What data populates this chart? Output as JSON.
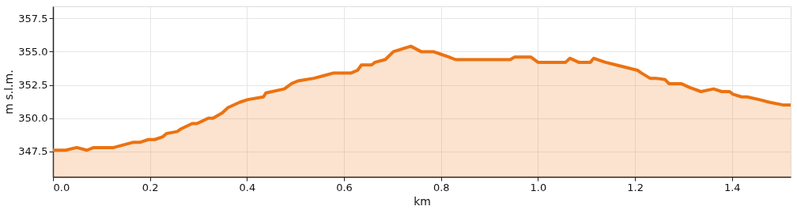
{
  "chart_data": {
    "type": "area",
    "xlabel": "km",
    "ylabel": "m s.l.m.",
    "xlim": [
      0,
      1.521
    ],
    "ylim": [
      345.6,
      358.4
    ],
    "xticks": [
      {
        "value": 0,
        "label": "0.0"
      },
      {
        "value": 0.2,
        "label": "0.2"
      },
      {
        "value": 0.4,
        "label": "0.4"
      },
      {
        "value": 0.6,
        "label": "0.6"
      },
      {
        "value": 0.8,
        "label": "0.8"
      },
      {
        "value": 1.0,
        "label": "1.0"
      },
      {
        "value": 1.2,
        "label": "1.2"
      },
      {
        "value": 1.4,
        "label": "1.4"
      }
    ],
    "yticks": [
      {
        "value": 347.5,
        "label": "347.5"
      },
      {
        "value": 350,
        "label": "350.0"
      },
      {
        "value": 352.5,
        "label": "352.5"
      },
      {
        "value": 355,
        "label": "355.0"
      },
      {
        "value": 357.5,
        "label": "357.5"
      }
    ],
    "grid": true,
    "x": [
      0.0,
      0.026,
      0.049,
      0.07,
      0.084,
      0.125,
      0.166,
      0.18,
      0.197,
      0.21,
      0.226,
      0.234,
      0.256,
      0.264,
      0.287,
      0.297,
      0.32,
      0.33,
      0.349,
      0.361,
      0.385,
      0.402,
      0.434,
      0.439,
      0.477,
      0.492,
      0.505,
      0.538,
      0.559,
      0.579,
      0.615,
      0.628,
      0.636,
      0.657,
      0.664,
      0.685,
      0.702,
      0.738,
      0.759,
      0.784,
      0.8,
      0.816,
      0.83,
      0.943,
      0.952,
      0.985,
      1.0,
      1.057,
      1.066,
      1.084,
      1.108,
      1.115,
      1.139,
      1.161,
      1.205,
      1.213,
      1.231,
      1.243,
      1.262,
      1.27,
      1.295,
      1.313,
      1.336,
      1.362,
      1.379,
      1.395,
      1.402,
      1.42,
      1.431,
      1.456,
      1.477,
      1.505,
      1.521
    ],
    "series": [
      {
        "color": "#ec7211",
        "values": [
          347.6,
          347.6,
          347.8,
          347.6,
          347.8,
          347.8,
          348.2,
          348.2,
          348.4,
          348.4,
          348.6,
          348.85,
          349.0,
          349.2,
          349.6,
          349.6,
          350.0,
          350.0,
          350.4,
          350.8,
          351.2,
          351.4,
          351.6,
          351.9,
          352.2,
          352.6,
          352.8,
          353.0,
          353.2,
          353.4,
          353.4,
          353.6,
          354.0,
          354.0,
          354.2,
          354.4,
          355.0,
          355.4,
          355.0,
          355.0,
          354.8,
          354.6,
          354.4,
          354.4,
          354.6,
          354.6,
          354.2,
          354.2,
          354.5,
          354.2,
          354.2,
          354.5,
          354.2,
          354.0,
          353.6,
          353.4,
          353.0,
          353.0,
          352.9,
          352.6,
          352.6,
          352.3,
          352.0,
          352.2,
          352.0,
          352.0,
          351.8,
          351.6,
          351.6,
          351.4,
          351.2,
          351.0,
          351.0
        ]
      }
    ]
  }
}
